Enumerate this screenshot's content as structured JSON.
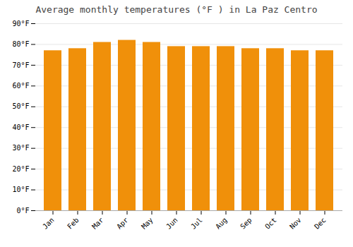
{
  "chart_data": {
    "type": "bar",
    "title": "Average monthly temperatures (°F ) in La Paz Centro",
    "categories": [
      "Jan",
      "Feb",
      "Mar",
      "Apr",
      "May",
      "Jun",
      "Jul",
      "Aug",
      "Sep",
      "Oct",
      "Nov",
      "Dec"
    ],
    "values": [
      77,
      78,
      81,
      82,
      81,
      79,
      79,
      79,
      78,
      78,
      77,
      77
    ],
    "color": "#F0900A",
    "ylim": [
      0,
      90
    ],
    "yticks": [
      {
        "value": 0,
        "label": "0°F"
      },
      {
        "value": 10,
        "label": "10°F"
      },
      {
        "value": 20,
        "label": "20°F"
      },
      {
        "value": 30,
        "label": "30°F"
      },
      {
        "value": 40,
        "label": "40°F"
      },
      {
        "value": 50,
        "label": "50°F"
      },
      {
        "value": 60,
        "label": "60°F"
      },
      {
        "value": 70,
        "label": "70°F"
      },
      {
        "value": 80,
        "label": "80°F"
      },
      {
        "value": 90,
        "label": "90°F"
      }
    ],
    "grid": true
  }
}
